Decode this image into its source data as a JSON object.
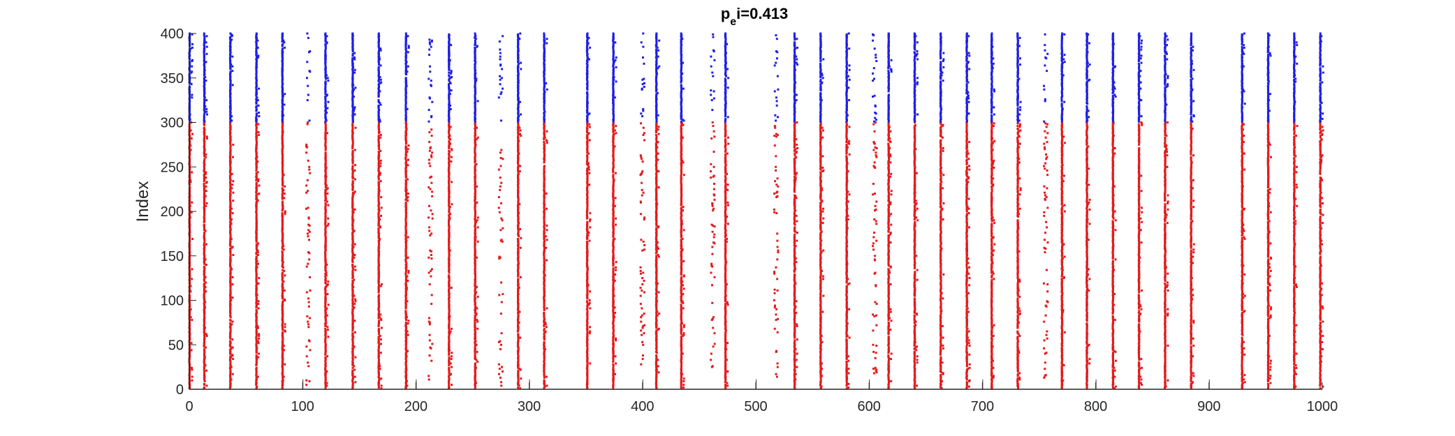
{
  "chart_data": {
    "type": "scatter",
    "title": "p_ei=0.413",
    "title_parts": {
      "base": "p",
      "sub": "e",
      "rest": "i=0.413"
    },
    "xlabel": "",
    "ylabel": "Index",
    "xlim": [
      0,
      1000
    ],
    "ylim": [
      0,
      400
    ],
    "xticks": [
      "0",
      "100",
      "200",
      "300",
      "400",
      "500",
      "600",
      "700",
      "800",
      "900",
      "1000"
    ],
    "yticks": [
      "0",
      "50",
      "100",
      "150",
      "200",
      "250",
      "300",
      "350",
      "400"
    ],
    "grid": false,
    "legend": "none",
    "marker_size": 3,
    "series": [
      {
        "color": "#e41a1c",
        "index_range": [
          1,
          300
        ],
        "strong_volleys": [
          0,
          13,
          36,
          59,
          82,
          120,
          144,
          167,
          191,
          229,
          252,
          290,
          313,
          351,
          374,
          412,
          434,
          473,
          534,
          557,
          580,
          617,
          640,
          663,
          686,
          708,
          731,
          770,
          792,
          815,
          838,
          861,
          884,
          929,
          952,
          975,
          998
        ],
        "sparse_volleys": [
          105,
          213,
          275,
          400,
          462,
          518,
          605,
          756
        ]
      },
      {
        "color": "#1f1fe6",
        "index_range": [
          301,
          400
        ],
        "strong_volleys": [
          0,
          13,
          36,
          59,
          82,
          120,
          144,
          167,
          191,
          229,
          252,
          290,
          313,
          351,
          374,
          412,
          434,
          473,
          534,
          557,
          580,
          617,
          640,
          663,
          686,
          708,
          731,
          770,
          792,
          815,
          838,
          861,
          884,
          929,
          952,
          975,
          998
        ],
        "sparse_volleys": [
          105,
          213,
          275,
          400,
          462,
          518,
          605,
          756
        ]
      }
    ],
    "threshold_marks_x": [
      100,
      200,
      300,
      400,
      500,
      600,
      700,
      800,
      900
    ]
  },
  "colors": {
    "inhibitory": "#1f1fe6",
    "excitatory": "#e41a1c",
    "axis": "#262626"
  }
}
